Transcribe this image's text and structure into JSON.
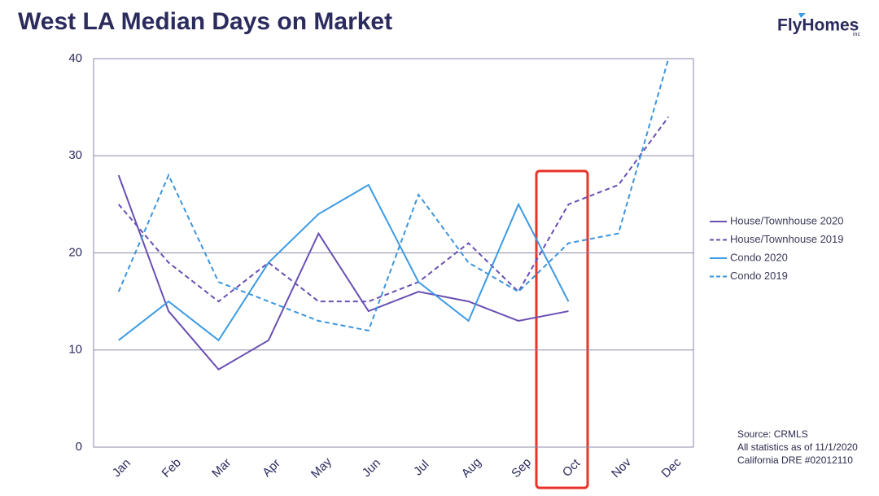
{
  "chart_data": {
    "type": "line",
    "title": "West LA Median Days on Market",
    "logo": "FlyHomes",
    "logo_suffix": "inc",
    "categories": [
      "Jan",
      "Feb",
      "Mar",
      "Apr",
      "May",
      "Jun",
      "Jul",
      "Aug",
      "Sep",
      "Oct",
      "Nov",
      "Dec"
    ],
    "series": [
      {
        "name": "House/Townhouse 2020",
        "color": "#6a4fb3",
        "dash": false,
        "values": [
          28,
          14,
          8,
          11,
          22,
          14,
          16,
          15,
          13,
          14,
          null,
          null
        ]
      },
      {
        "name": "House/Townhouse 2019",
        "color": "#6a4fb3",
        "dash": true,
        "values": [
          25,
          19,
          15,
          19,
          15,
          15,
          17,
          21,
          16,
          25,
          27,
          34
        ]
      },
      {
        "name": "Condo 2020",
        "color": "#3d9be3",
        "dash": false,
        "values": [
          11,
          15,
          11,
          19,
          24,
          27,
          17,
          13,
          25,
          15,
          null,
          null
        ]
      },
      {
        "name": "Condo 2019",
        "color": "#3d95dc",
        "dash": true,
        "values": [
          16,
          28,
          17,
          15,
          13,
          12,
          26,
          19,
          16,
          21,
          22,
          40
        ]
      }
    ],
    "ylim": [
      0,
      40
    ],
    "yticks": [
      0,
      10,
      20,
      30,
      40
    ],
    "grid": true,
    "annotations": [
      "Source: CRMLS",
      "All statistics as of 11/1/2020",
      "California DRE #02012110"
    ]
  }
}
